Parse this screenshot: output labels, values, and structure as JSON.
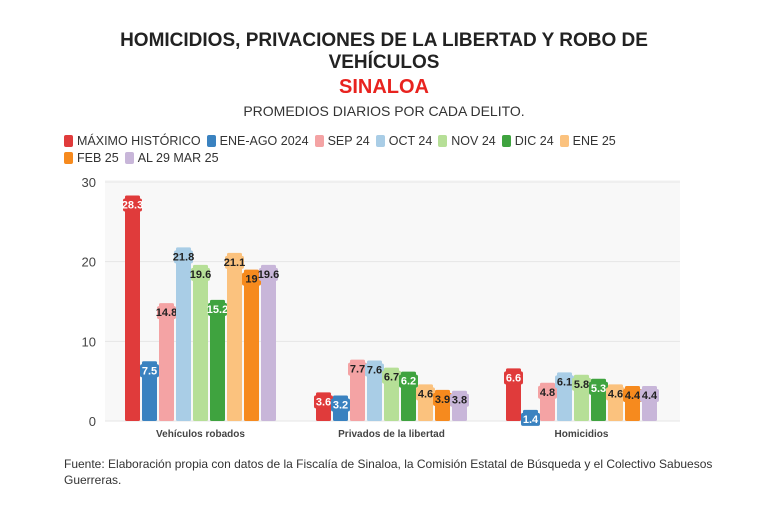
{
  "title_line1": "HOMICIDIOS, PRIVACIONES DE LA LIBERTAD Y ROBO DE",
  "title_line2": "VEHÍCULOS",
  "title_region": "SINALOA",
  "subtitle": "PROMEDIOS DIARIOS POR CADA DELITO.",
  "source": "Fuente: Elaboración propia con datos de la Fiscalía de Sinaloa, la Comisión Estatal de Búsqueda y el Colectivo Sabuesos Guerreras.",
  "chart_data": {
    "type": "bar",
    "categories": [
      "Vehículos robados",
      "Privados de la libertad",
      "Homicidios"
    ],
    "ylim": [
      0,
      30
    ],
    "yticks": [
      0,
      10,
      20,
      30
    ],
    "grid": true,
    "legend_position": "top-left",
    "series": [
      {
        "name": "MÁXIMO HISTÓRICO",
        "color": "#e03b3b",
        "label_color": "#ffffff",
        "values": [
          28.3,
          3.6,
          6.6
        ]
      },
      {
        "name": "ENE-AGO 2024",
        "color": "#3a82c0",
        "label_color": "#ffffff",
        "values": [
          7.5,
          3.2,
          1.4
        ]
      },
      {
        "name": "SEP 24",
        "color": "#f4a3a4",
        "label_color": "#222222",
        "values": [
          14.8,
          7.7,
          4.8
        ]
      },
      {
        "name": "OCT 24",
        "color": "#a9cde6",
        "label_color": "#222222",
        "values": [
          21.8,
          7.6,
          6.1
        ]
      },
      {
        "name": "NOV 24",
        "color": "#b6df97",
        "label_color": "#222222",
        "values": [
          19.6,
          6.7,
          5.8
        ]
      },
      {
        "name": "DIC 24",
        "color": "#3fa33f",
        "label_color": "#ffffff",
        "values": [
          15.2,
          6.2,
          5.3
        ]
      },
      {
        "name": "ENE 25",
        "color": "#fbc27e",
        "label_color": "#222222",
        "values": [
          21.1,
          4.6,
          4.6
        ]
      },
      {
        "name": "FEB 25",
        "color": "#f68a1e",
        "label_color": "#222222",
        "values": [
          19,
          3.9,
          4.4
        ]
      },
      {
        "name": "AL 29 MAR 25",
        "color": "#c8b6d9",
        "label_color": "#222222",
        "values": [
          19.6,
          3.8,
          4.4
        ]
      }
    ]
  }
}
